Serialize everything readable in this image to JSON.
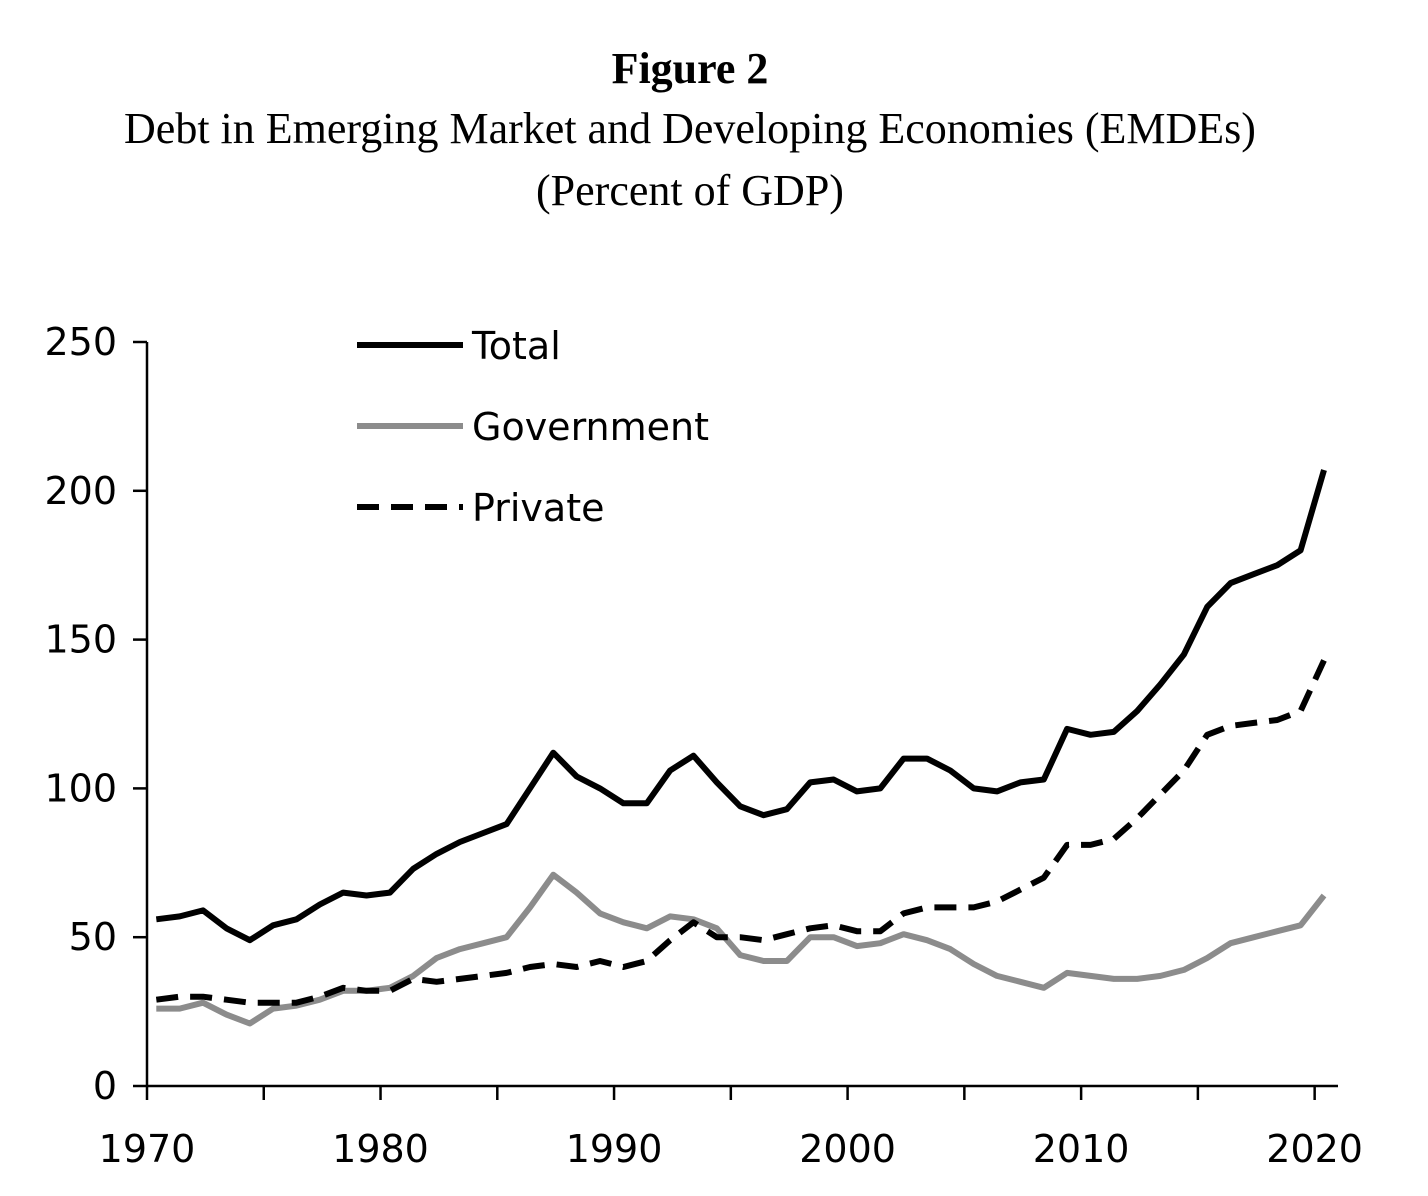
{
  "header": {
    "figure_label": "Figure 2",
    "title": "Debt in Emerging Market and Developing Economies (EMDEs)",
    "subtitle": "(Percent of GDP)"
  },
  "chart_data": {
    "type": "line",
    "title": "Debt in Emerging Market and Developing Economies (EMDEs)",
    "subtitle": "(Percent of GDP)",
    "xlabel": "",
    "ylabel": "",
    "xlim": [
      1970,
      2021
    ],
    "ylim": [
      0,
      250
    ],
    "x_ticks": [
      1970,
      1980,
      1990,
      2000,
      2010,
      2020
    ],
    "y_ticks": [
      0,
      50,
      100,
      150,
      200,
      250
    ],
    "grid": false,
    "legend_position": "top-left",
    "x": [
      1970,
      1971,
      1972,
      1973,
      1974,
      1975,
      1976,
      1977,
      1978,
      1979,
      1980,
      1981,
      1982,
      1983,
      1984,
      1985,
      1986,
      1987,
      1988,
      1989,
      1990,
      1991,
      1992,
      1993,
      1994,
      1995,
      1996,
      1997,
      1998,
      1999,
      2000,
      2001,
      2002,
      2003,
      2004,
      2005,
      2006,
      2007,
      2008,
      2009,
      2010,
      2011,
      2012,
      2013,
      2014,
      2015,
      2016,
      2017,
      2018,
      2019,
      2020
    ],
    "series": [
      {
        "name": "Total",
        "color": "#000000",
        "style": "solid",
        "values": [
          56,
          57,
          59,
          53,
          49,
          54,
          56,
          61,
          65,
          64,
          65,
          73,
          78,
          82,
          85,
          88,
          100,
          112,
          104,
          100,
          95,
          95,
          106,
          111,
          102,
          94,
          91,
          93,
          102,
          103,
          99,
          100,
          110,
          110,
          106,
          100,
          99,
          102,
          103,
          120,
          118,
          119,
          126,
          135,
          145,
          161,
          169,
          172,
          175,
          180,
          207
        ]
      },
      {
        "name": "Government",
        "color": "#8c8c8c",
        "style": "solid",
        "values": [
          26,
          26,
          28,
          24,
          21,
          26,
          27,
          29,
          32,
          32,
          33,
          37,
          43,
          46,
          48,
          50,
          60,
          71,
          65,
          58,
          55,
          53,
          57,
          56,
          53,
          44,
          42,
          42,
          50,
          50,
          47,
          48,
          51,
          49,
          46,
          41,
          37,
          35,
          33,
          38,
          37,
          36,
          36,
          37,
          39,
          43,
          48,
          50,
          52,
          54,
          64
        ]
      },
      {
        "name": "Private",
        "color": "#000000",
        "style": "dashed",
        "values": [
          29,
          30,
          30,
          29,
          28,
          28,
          28,
          30,
          33,
          32,
          32,
          36,
          35,
          36,
          37,
          38,
          40,
          41,
          40,
          42,
          40,
          42,
          49,
          55,
          50,
          50,
          49,
          51,
          53,
          54,
          52,
          52,
          58,
          60,
          60,
          60,
          62,
          66,
          70,
          81,
          81,
          83,
          90,
          98,
          106,
          118,
          121,
          122,
          123,
          126,
          143
        ]
      }
    ]
  }
}
